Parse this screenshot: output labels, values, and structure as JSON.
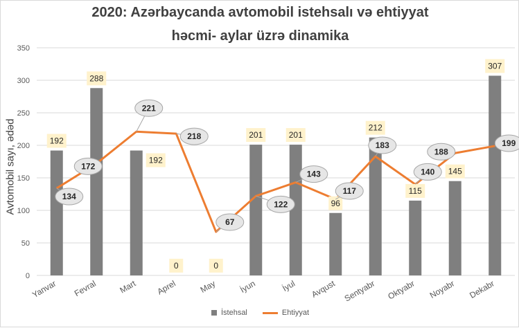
{
  "chart_data": {
    "type": "bar",
    "title": "2020: Azərbaycanda avtomobil istehsalı və ehtiyyat",
    "subtitle": "həcmi- aylar üzrə dinamika",
    "ylabel": "Avtomobil sayı, ədəd",
    "xlabel": "",
    "ylim": [
      0,
      350
    ],
    "yticks": [
      0,
      50,
      100,
      150,
      200,
      250,
      300,
      350
    ],
    "grid": true,
    "legend_position": "bottom",
    "categories": [
      "Yanvar",
      "Fevral",
      "Mart",
      "Aprel",
      "May",
      "İyun",
      "İyul",
      "Avqust",
      "Sentyabr",
      "Oktyabr",
      "Noyabr",
      "Dekabr"
    ],
    "series": [
      {
        "name": "İstehsal",
        "type": "bar",
        "color": "#7f7f7f",
        "values": [
          192,
          288,
          192,
          0,
          0,
          201,
          201,
          96,
          212,
          115,
          145,
          307
        ]
      },
      {
        "name": "Ehtiyyat",
        "type": "line",
        "color": "#ed7d31",
        "values": [
          134,
          172,
          221,
          218,
          67,
          122,
          143,
          117,
          183,
          140,
          188,
          199
        ]
      }
    ]
  }
}
